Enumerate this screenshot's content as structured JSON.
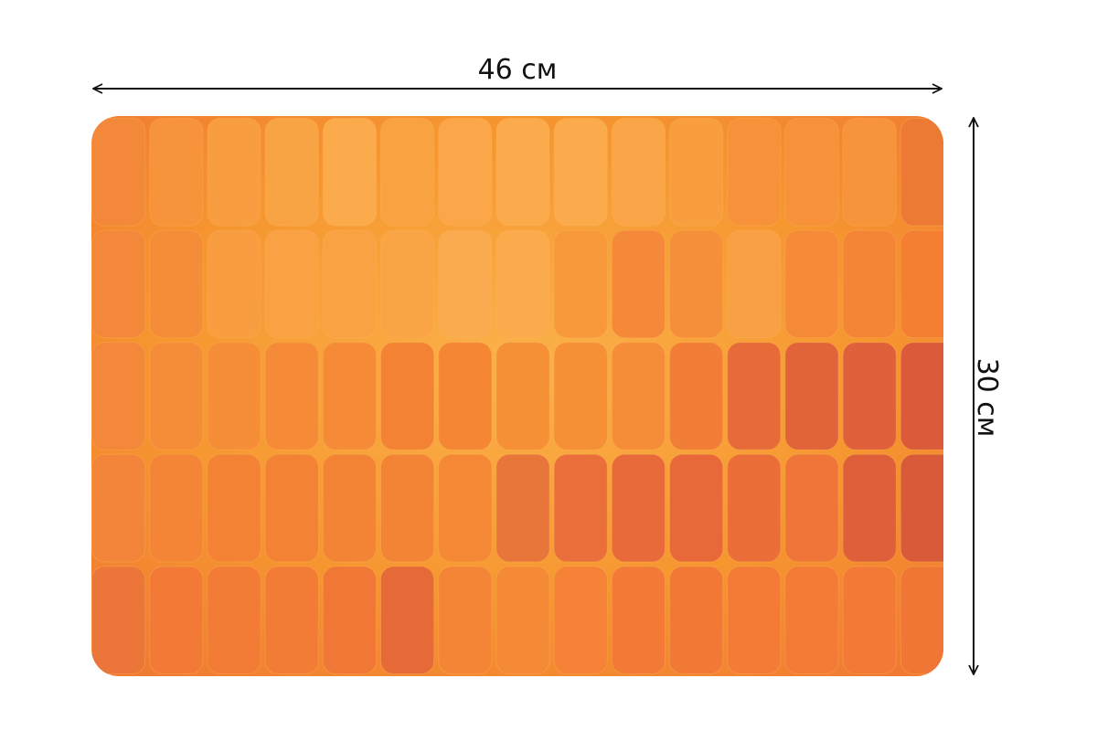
{
  "width_label": "46 см",
  "height_label": "30 см"
}
